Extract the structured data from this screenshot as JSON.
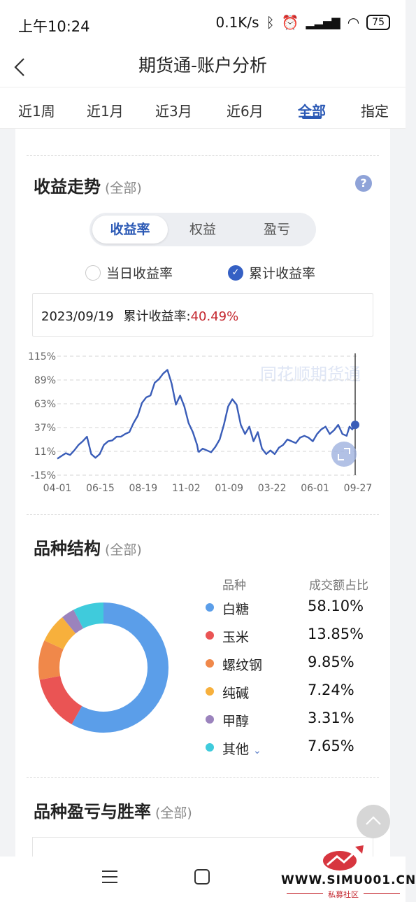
{
  "status": {
    "time": "上午10:24",
    "speed": "0.1K/s",
    "battery": "75"
  },
  "nav": {
    "title": "期货通-账户分析"
  },
  "tabs": [
    "近1周",
    "近1月",
    "近3月",
    "近6月",
    "全部",
    "指定"
  ],
  "income": {
    "title": "收益走势",
    "scope": "(全部)",
    "help": "?",
    "segments": [
      "收益率",
      "权益",
      "盈亏"
    ],
    "radio_daily": "当日收益率",
    "radio_cum": "累计收益率",
    "info_date": "2023/09/19",
    "info_label": "累计收益率:",
    "info_value": "40.49%",
    "watermark": "同花顺期货通"
  },
  "chart_data": {
    "type": "line",
    "y_ticks": [
      "115%",
      "89%",
      "63%",
      "37%",
      "11%",
      "-15%"
    ],
    "x_ticks": [
      "04-01",
      "06-15",
      "08-19",
      "11-02",
      "01-09",
      "03-22",
      "06-01",
      "09-27"
    ],
    "ylim": [
      -15,
      115
    ],
    "grid": true,
    "color": "#3a5db8",
    "series": [
      {
        "x": [
          0,
          3,
          6,
          9,
          12,
          15,
          18,
          21,
          24,
          27,
          30,
          33,
          36,
          39,
          42,
          45,
          48,
          51,
          54,
          57,
          60,
          63,
          66,
          69,
          72,
          75,
          78,
          81,
          84,
          87,
          90,
          93,
          96,
          99,
          100
        ],
        "values": [
          3,
          6,
          9,
          7,
          12,
          18,
          22,
          27,
          8,
          4,
          8,
          18,
          22,
          23,
          27,
          27,
          30,
          32,
          42,
          50,
          64,
          70,
          72,
          86,
          90,
          96,
          100,
          85,
          62,
          72,
          60,
          42,
          32,
          18,
          10
        ]
      },
      {
        "x": [
          100,
          103,
          106,
          109,
          112,
          115,
          118,
          121,
          124,
          127,
          130,
          133,
          136,
          139,
          142,
          145,
          148,
          151,
          154,
          157,
          160,
          163,
          166,
          169,
          172,
          175,
          178,
          181,
          184,
          187,
          190,
          193,
          196,
          199,
          202,
          205,
          207,
          209,
          211,
          213
        ],
        "values": [
          10,
          14,
          12,
          10,
          16,
          24,
          40,
          60,
          68,
          62,
          40,
          30,
          38,
          22,
          32,
          14,
          8,
          12,
          8,
          15,
          18,
          24,
          22,
          20,
          26,
          28,
          26,
          22,
          30,
          35,
          38,
          30,
          34,
          40,
          30,
          28,
          38,
          35,
          40,
          40
        ]
      }
    ]
  },
  "varieties": {
    "title": "品种结构",
    "scope": "(全部)",
    "head_name": "品种",
    "head_share": "成交额占比",
    "items": [
      {
        "name": "白糖",
        "share": "58.10%",
        "value": 58.1,
        "color": "#5b9ee9"
      },
      {
        "name": "玉米",
        "share": "13.85%",
        "value": 13.85,
        "color": "#ea5454"
      },
      {
        "name": "螺纹钢",
        "share": "9.85%",
        "value": 9.85,
        "color": "#f0884a"
      },
      {
        "name": "纯碱",
        "share": "7.24%",
        "value": 7.24,
        "color": "#f7b03c"
      },
      {
        "name": "甲醇",
        "share": "3.31%",
        "value": 3.31,
        "color": "#9b83bd"
      },
      {
        "name": "其他",
        "share": "7.65%",
        "value": 7.65,
        "color": "#3fcbdc"
      }
    ]
  },
  "pnl": {
    "title": "品种盈亏与胜率",
    "scope": "(全部)"
  },
  "watermark_site": {
    "text": "WWW.SIMU001.CN",
    "sub": "私募社区"
  }
}
